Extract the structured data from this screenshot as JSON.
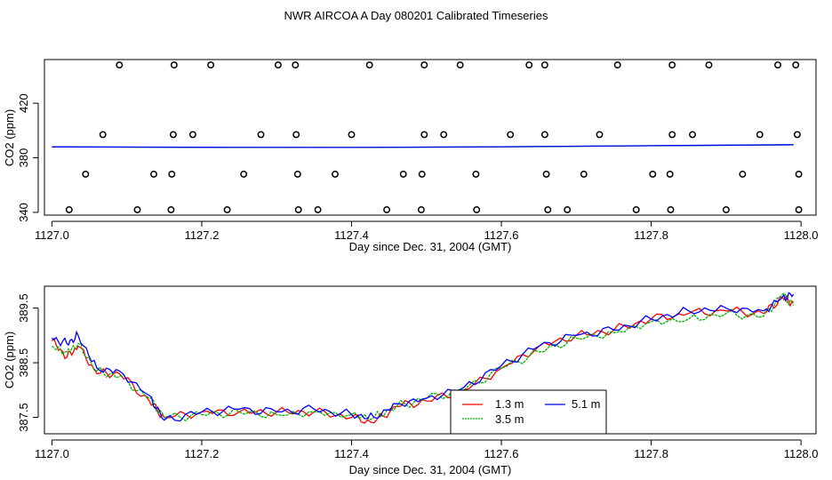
{
  "title": "NWR AIRCOA A  Day 080201  Calibrated Timeseries",
  "colors": {
    "red": "#ff0000",
    "green": "#00b000",
    "blue": "#0000ff",
    "axis": "#000000",
    "background": "#ffffff"
  },
  "chart_data": [
    {
      "type": "scatter",
      "title": "",
      "xlabel": "Day since Dec. 31, 2004 (GMT)",
      "ylabel": "CO2 (ppm)",
      "xlim": [
        1126.99,
        1128.02
      ],
      "ylim": [
        338,
        452
      ],
      "xticks": [
        "1127.0",
        "1127.2",
        "1127.4",
        "1127.6",
        "1127.8",
        "1128.0"
      ],
      "yticks": [
        "340",
        "380",
        "420"
      ],
      "grid": false,
      "points": {
        "marker": "open-circle",
        "x": [
          1127.09,
          1127.163,
          1127.212,
          1127.302,
          1127.325,
          1127.424,
          1127.497,
          1127.545,
          1127.637,
          1127.658,
          1127.755,
          1127.828,
          1127.877,
          1127.969,
          1127.993,
          1127.068,
          1127.162,
          1127.188,
          1127.279,
          1127.326,
          1127.4,
          1127.497,
          1127.523,
          1127.612,
          1127.658,
          1127.731,
          1127.828,
          1127.855,
          1127.945,
          1127.995,
          1127.045,
          1127.136,
          1127.16,
          1127.256,
          1127.328,
          1127.378,
          1127.469,
          1127.494,
          1127.566,
          1127.66,
          1127.71,
          1127.802,
          1127.825,
          1127.922,
          1127.997,
          1127.023,
          1127.114,
          1127.159,
          1127.234,
          1127.329,
          1127.355,
          1127.447,
          1127.493,
          1127.567,
          1127.662,
          1127.688,
          1127.78,
          1127.826,
          1127.9,
          1127.997
        ],
        "y": [
          448,
          448,
          448,
          448,
          448,
          448,
          448,
          448,
          448,
          448,
          448,
          448,
          448,
          448,
          448,
          397,
          397,
          397,
          397,
          397,
          397,
          397,
          397,
          397,
          397,
          397,
          397,
          397,
          397,
          397,
          368,
          368,
          368,
          368,
          368,
          368,
          368,
          368,
          368,
          368,
          368,
          368,
          368,
          368,
          368,
          342,
          342,
          342,
          342,
          342,
          342,
          342,
          342,
          342,
          342,
          342,
          342,
          342,
          342,
          342
        ]
      },
      "series": [
        {
          "color": "#00b000",
          "x": [
            1127.0,
            1127.2,
            1127.4,
            1127.6,
            1127.8,
            1127.99
          ],
          "y": [
            388,
            387.6,
            387.6,
            388,
            388.8,
            389.5
          ]
        },
        {
          "color": "#0000ff",
          "x": [
            1127.0,
            1127.2,
            1127.4,
            1127.6,
            1127.8,
            1127.99
          ],
          "y": [
            388,
            387.7,
            387.6,
            388.1,
            388.9,
            389.6
          ]
        }
      ]
    },
    {
      "type": "line",
      "title": "",
      "xlabel": "Day since Dec. 31, 2004 (GMT)",
      "ylabel": "CO2 (ppm)",
      "xlim": [
        1126.99,
        1128.02
      ],
      "ylim": [
        387.2,
        389.9
      ],
      "xticks": [
        "1127.0",
        "1127.2",
        "1127.4",
        "1127.6",
        "1127.8",
        "1128.0"
      ],
      "yticks": [
        "387.5",
        "388.5",
        "389.5"
      ],
      "grid": false,
      "legend_position": "bottom-center",
      "legend_columns": 2,
      "keypoints_x": [
        1127.0,
        1127.02,
        1127.035,
        1127.06,
        1127.09,
        1127.13,
        1127.15,
        1127.2,
        1127.25,
        1127.3,
        1127.35,
        1127.4,
        1127.43,
        1127.46,
        1127.5,
        1127.55,
        1127.6,
        1127.65,
        1127.7,
        1127.75,
        1127.8,
        1127.85,
        1127.9,
        1127.95,
        1127.975,
        1127.99
      ],
      "series": [
        {
          "name": "1.3 m",
          "color": "#ff0000",
          "y": [
            388.9,
            388.6,
            388.8,
            388.3,
            388.3,
            387.8,
            387.5,
            387.6,
            387.6,
            387.6,
            387.6,
            387.5,
            387.4,
            387.7,
            387.8,
            388.0,
            388.4,
            388.8,
            389.0,
            389.1,
            389.3,
            389.4,
            389.45,
            389.4,
            389.7,
            389.6
          ]
        },
        {
          "name": "3.5 m",
          "color": "#00b000",
          "y": [
            388.8,
            388.7,
            388.85,
            388.35,
            388.25,
            387.85,
            387.5,
            387.55,
            387.6,
            387.55,
            387.6,
            387.55,
            387.5,
            387.7,
            387.85,
            388.0,
            388.4,
            388.7,
            388.95,
            389.05,
            389.25,
            389.3,
            389.4,
            389.35,
            389.75,
            389.55
          ]
        },
        {
          "name": "5.1 m",
          "color": "#0000ff",
          "y": [
            388.95,
            388.85,
            389.0,
            388.4,
            388.35,
            387.9,
            387.45,
            387.6,
            387.65,
            387.6,
            387.65,
            387.55,
            387.5,
            387.75,
            387.85,
            388.05,
            388.45,
            388.8,
            389.0,
            389.1,
            389.3,
            389.45,
            389.5,
            389.45,
            389.7,
            389.75
          ]
        }
      ]
    }
  ]
}
